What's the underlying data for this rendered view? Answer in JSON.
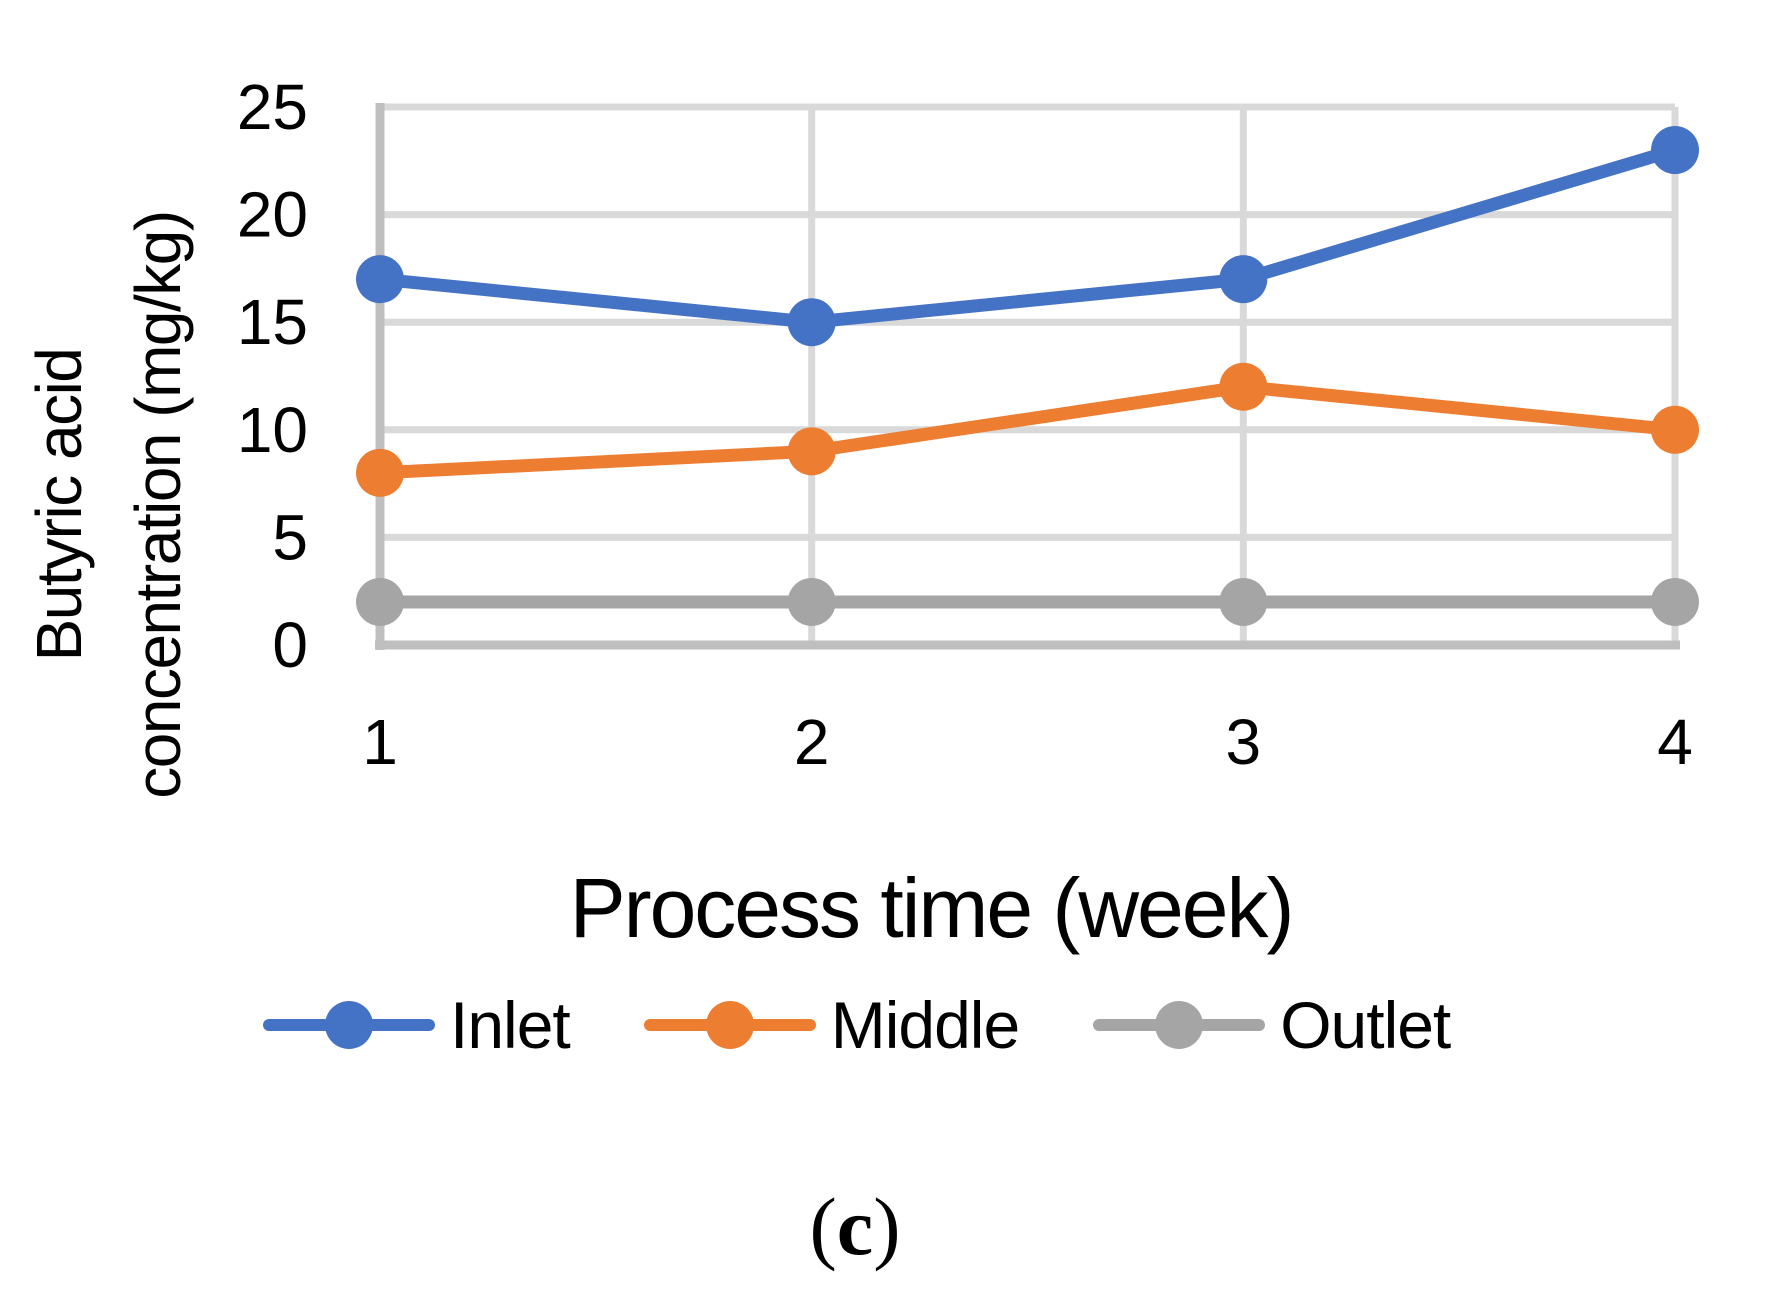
{
  "chart_data": {
    "type": "line",
    "title": "",
    "xlabel": "Process time (week)",
    "ylabel": "Butyric acid concentration (mg/kg)",
    "ylabel_lines": [
      "Butyric acid",
      "concentration (mg/kg)"
    ],
    "x": [
      1,
      2,
      3,
      4
    ],
    "xlim": [
      1,
      4
    ],
    "ylim": [
      0,
      25
    ],
    "yticks": [
      0,
      5,
      10,
      15,
      20,
      25
    ],
    "grid": true,
    "legend_position": "bottom",
    "series": [
      {
        "name": "Inlet",
        "color": "#4472C4",
        "values": [
          17,
          15,
          17,
          23
        ]
      },
      {
        "name": "Middle",
        "color": "#ED7D31",
        "values": [
          8,
          9,
          12,
          10
        ]
      },
      {
        "name": "Outlet",
        "color": "#A5A5A5",
        "values": [
          2,
          2,
          2,
          2
        ]
      }
    ]
  },
  "caption": {
    "open": "(",
    "letter": "c",
    "close": ")"
  },
  "colors": {
    "gridline": "#D9D9D9",
    "axis": "#BFBFBF",
    "text": "#000000",
    "background": "#FFFFFF"
  }
}
